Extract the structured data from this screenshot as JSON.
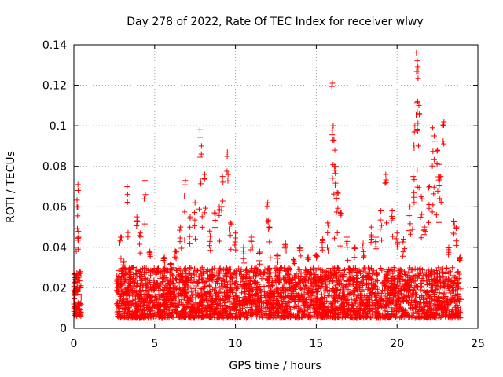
{
  "chart_data": {
    "type": "scatter",
    "title": "Day 278 of 2022, Rate Of TEC Index for receiver wlwy",
    "xlabel": "GPS time / hours",
    "ylabel": "ROTI / TECUs",
    "xlim": [
      0,
      25
    ],
    "ylim": [
      0,
      0.14
    ],
    "xticks": [
      0,
      5,
      10,
      15,
      20,
      25
    ],
    "xtick_labels": [
      "0",
      "5",
      "10",
      "15",
      "20",
      "25"
    ],
    "yticks": [
      0,
      0.02,
      0.04,
      0.06,
      0.08,
      0.1,
      0.12,
      0.14
    ],
    "ytick_labels": [
      "0",
      "0.02",
      "0.04",
      "0.06",
      "0.08",
      "0.1",
      "0.12",
      "0.14"
    ],
    "grid": true,
    "marker": "+",
    "marker_color": "#ff0000",
    "series": [
      {
        "name": "ROTI",
        "points": [
          [
            0.05,
            0.012
          ],
          [
            0.1,
            0.018
          ],
          [
            0.15,
            0.025
          ],
          [
            0.2,
            0.06
          ],
          [
            0.25,
            0.071
          ],
          [
            0.3,
            0.045
          ],
          [
            0.35,
            0.02
          ],
          [
            0.4,
            0.008
          ],
          [
            2.7,
            0.022
          ],
          [
            2.9,
            0.045
          ],
          [
            3.1,
            0.033
          ],
          [
            3.3,
            0.07
          ],
          [
            3.6,
            0.03
          ],
          [
            3.9,
            0.055
          ],
          [
            4.1,
            0.047
          ],
          [
            4.4,
            0.073
          ],
          [
            4.7,
            0.038
          ],
          [
            5.2,
            0.028
          ],
          [
            5.6,
            0.035
          ],
          [
            6.0,
            0.032
          ],
          [
            6.3,
            0.038
          ],
          [
            6.6,
            0.05
          ],
          [
            6.9,
            0.073
          ],
          [
            7.2,
            0.055
          ],
          [
            7.5,
            0.062
          ],
          [
            7.8,
            0.098
          ],
          [
            7.9,
            0.09
          ],
          [
            8.1,
            0.076
          ],
          [
            8.4,
            0.048
          ],
          [
            8.7,
            0.057
          ],
          [
            9.0,
            0.06
          ],
          [
            9.2,
            0.075
          ],
          [
            9.5,
            0.087
          ],
          [
            9.7,
            0.052
          ],
          [
            10.0,
            0.047
          ],
          [
            10.5,
            0.04
          ],
          [
            11.0,
            0.045
          ],
          [
            11.5,
            0.038
          ],
          [
            12.0,
            0.062
          ],
          [
            12.1,
            0.05
          ],
          [
            12.6,
            0.036
          ],
          [
            13.1,
            0.042
          ],
          [
            13.6,
            0.034
          ],
          [
            14.0,
            0.04
          ],
          [
            14.5,
            0.035
          ],
          [
            15.0,
            0.036
          ],
          [
            15.4,
            0.044
          ],
          [
            15.7,
            0.052
          ],
          [
            16.0,
            0.121
          ],
          [
            16.05,
            0.1
          ],
          [
            16.15,
            0.088
          ],
          [
            16.2,
            0.08
          ],
          [
            16.3,
            0.067
          ],
          [
            16.5,
            0.057
          ],
          [
            16.9,
            0.045
          ],
          [
            17.4,
            0.04
          ],
          [
            17.9,
            0.042
          ],
          [
            18.4,
            0.05
          ],
          [
            18.7,
            0.045
          ],
          [
            19.0,
            0.058
          ],
          [
            19.3,
            0.076
          ],
          [
            19.7,
            0.058
          ],
          [
            20.0,
            0.047
          ],
          [
            20.4,
            0.044
          ],
          [
            20.8,
            0.06
          ],
          [
            21.0,
            0.075
          ],
          [
            21.1,
            0.1
          ],
          [
            21.2,
            0.136
          ],
          [
            21.25,
            0.132
          ],
          [
            21.3,
            0.127
          ],
          [
            21.35,
            0.11
          ],
          [
            21.5,
            0.065
          ],
          [
            21.7,
            0.05
          ],
          [
            22.0,
            0.07
          ],
          [
            22.2,
            0.099
          ],
          [
            22.3,
            0.095
          ],
          [
            22.5,
            0.088
          ],
          [
            22.6,
            0.081
          ],
          [
            22.7,
            0.075
          ],
          [
            22.9,
            0.102
          ],
          [
            23.2,
            0.04
          ],
          [
            23.5,
            0.053
          ],
          [
            23.7,
            0.05
          ],
          [
            23.9,
            0.035
          ]
        ],
        "band": {
          "description": "dense cloud of many overlapping '+' markers",
          "segments": [
            {
              "x_range": [
                0.0,
                0.45
              ],
              "y_range": [
                0.006,
                0.028
              ]
            },
            {
              "x_range": [
                2.6,
                23.95
              ],
              "y_range": [
                0.005,
                0.03
              ]
            }
          ]
        }
      }
    ]
  }
}
